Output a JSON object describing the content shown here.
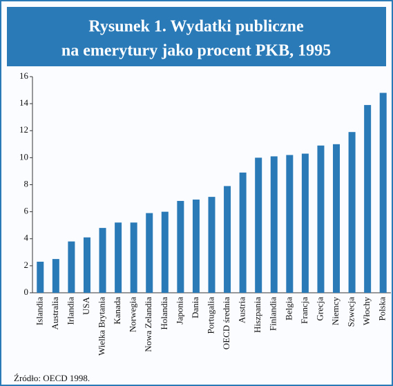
{
  "chart_data": {
    "type": "bar",
    "title_lines": [
      "Rysunek  1. Wydatki publiczne",
      "na emerytury jako procent PKB, 1995"
    ],
    "categories": [
      "Islandia",
      "Australia",
      "Irlandia",
      "USA",
      "Wielka Brytania",
      "Kanada",
      "Norwegia",
      "Nowa Zelandia",
      "Holandia",
      "Japonia",
      "Dania",
      "Portugalia",
      "OECD średnia",
      "Austria",
      "Hiszpania",
      "Finlandia",
      "Belgia",
      "Francja",
      "Grecja",
      "Niemcy",
      "Szwecja",
      "Włochy",
      "Polska"
    ],
    "values": [
      2.3,
      2.5,
      3.8,
      4.1,
      4.8,
      5.2,
      5.2,
      5.9,
      6.0,
      6.8,
      6.9,
      7.1,
      7.9,
      8.9,
      10.0,
      10.1,
      10.2,
      10.3,
      10.9,
      11.0,
      11.9,
      13.9,
      14.8
    ],
    "color": "#2a7ab8",
    "ylim": [
      0,
      16
    ],
    "yticks": [
      0,
      2,
      4,
      6,
      8,
      10,
      12,
      14,
      16
    ],
    "source": "Źródło: OECD 1998."
  }
}
